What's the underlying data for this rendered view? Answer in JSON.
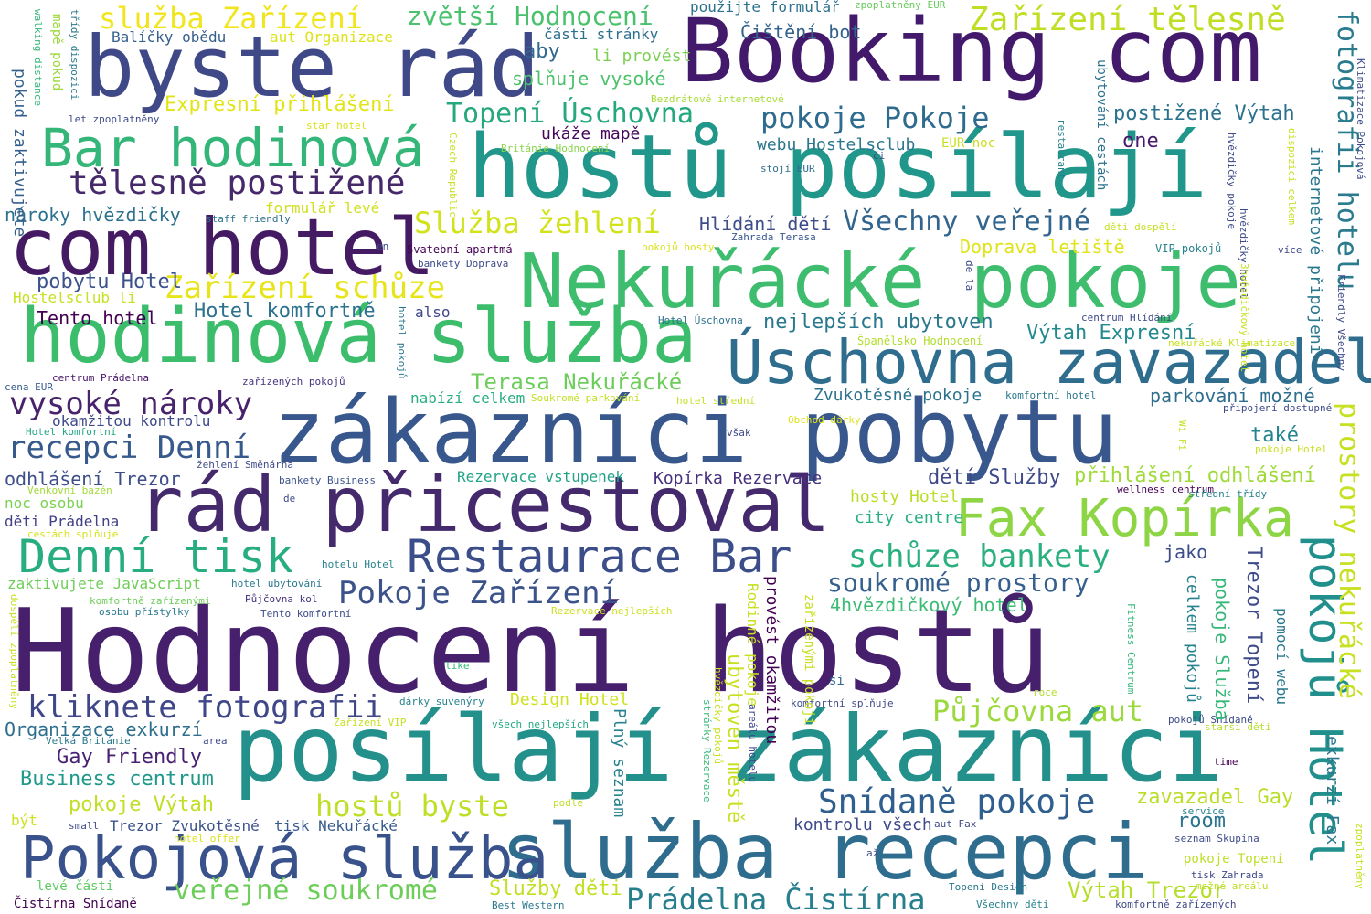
{
  "words": [
    {
      "text": "Hodnocení hostů",
      "color": "#46206c"
    },
    {
      "text": "posílají zákazníci",
      "color": "#23908c"
    },
    {
      "text": "hostů posílají",
      "color": "#21968a"
    },
    {
      "text": "Booking com",
      "color": "#43196b"
    },
    {
      "text": "zákazníci pobytu",
      "color": "#38578c"
    },
    {
      "text": "byste rád",
      "color": "#3f4988"
    },
    {
      "text": "com hotel",
      "color": "#441b63"
    },
    {
      "text": "Nekuřácké pokoje",
      "color": "#3fbd6f"
    },
    {
      "text": "hodinová služba",
      "color": "#3bbd6c"
    },
    {
      "text": "Úschovna zavazadel",
      "color": "#2e6d8e"
    },
    {
      "text": "rád přicestoval",
      "color": "#44296c"
    },
    {
      "text": "služba recepci",
      "color": "#2e6d8e"
    },
    {
      "text": "Pokojová služba",
      "color": "#39528b"
    },
    {
      "text": "Bar hodinová",
      "color": "#34b679"
    },
    {
      "text": "Denní tisk",
      "color": "#27ad7f"
    },
    {
      "text": "Restaurace Bar",
      "color": "#3b4e8a"
    },
    {
      "text": "Fax Kopírka",
      "color": "#8dd544"
    },
    {
      "text": "pokojů Hotel",
      "color": "#218f8c"
    },
    {
      "text": "fotografii hotelu",
      "color": "#2b7b8e"
    },
    {
      "text": "prostory nekuřácké",
      "color": "#c7e022"
    },
    {
      "text": "Snídaně pokoje",
      "color": "#2f5f8e"
    },
    {
      "text": "Prádelna Čistírna",
      "color": "#277f8e"
    },
    {
      "text": "tělesně postižené",
      "color": "#46296b"
    },
    {
      "text": "služba Zařízení",
      "color": "#f1e51d"
    },
    {
      "text": "zvětší Hodnocení",
      "color": "#4ac26d"
    },
    {
      "text": "Zařízení tělesně",
      "color": "#bfdf25"
    },
    {
      "text": "Topení Úschovna",
      "color": "#26a87f"
    },
    {
      "text": "pokoje Pokoje",
      "color": "#2e6b8e"
    },
    {
      "text": "Služba žehlení",
      "color": "#d2e21b"
    },
    {
      "text": "Všechny veřejné",
      "color": "#32658e"
    },
    {
      "text": "Zařízení schůze",
      "color": "#e7e419"
    },
    {
      "text": "vysoké nároky",
      "color": "#48226b"
    },
    {
      "text": "recepci Denní",
      "color": "#375a8c"
    },
    {
      "text": "Terasa Nekuřácké",
      "color": "#6ccd5a"
    },
    {
      "text": "schůze bankety",
      "color": "#2ab07f"
    },
    {
      "text": "soukromé prostory",
      "color": "#355f8d"
    },
    {
      "text": "Pokoje Zařízení",
      "color": "#3b528b"
    },
    {
      "text": "kliknete fotografii",
      "color": "#3f4788"
    },
    {
      "text": "Půjčovna aut",
      "color": "#9bd93c"
    },
    {
      "text": "hostů byste",
      "color": "#bddf26"
    },
    {
      "text": "veřejné soukromé",
      "color": "#6cce59"
    },
    {
      "text": "Expresní přihlášení",
      "color": "#e2e418"
    },
    {
      "text": "nároky hvězdičky",
      "color": "#2d718e"
    },
    {
      "text": "pobytu Hotel",
      "color": "#3b528b"
    },
    {
      "text": "Tento hotel",
      "color": "#440154"
    },
    {
      "text": "Hotel komfortně",
      "color": "#2c728e"
    },
    {
      "text": "nejlepších ubytoven",
      "color": "#2a788e"
    },
    {
      "text": "Výtah Expresní",
      "color": "#238a8d"
    },
    {
      "text": "Zvukotěsné pokoje",
      "color": "#2c738e"
    },
    {
      "text": "parkování možné",
      "color": "#2e6e8e"
    },
    {
      "text": "přihlášení odhlášení",
      "color": "#a0da39"
    },
    {
      "text": "dětí Služby",
      "color": "#3e4989"
    },
    {
      "text": "Kopírka Rezervace",
      "color": "#46307e"
    },
    {
      "text": "Rezervace vstupenek",
      "color": "#20a386"
    },
    {
      "text": "odhlášení Trezor",
      "color": "#3d4e8a"
    },
    {
      "text": "Organizace exkurzí",
      "color": "#2e6f8e"
    },
    {
      "text": "Gay Friendly",
      "color": "#482173"
    },
    {
      "text": "Business centrum",
      "color": "#1f998a"
    },
    {
      "text": "pokoje Výtah",
      "color": "#c0df25"
    },
    {
      "text": "Trezor Zvukotěsné",
      "color": "#3b528b"
    },
    {
      "text": "tisk Nekuřácké",
      "color": "#365c8d"
    },
    {
      "text": "kontrolu všech",
      "color": "#3e4a89"
    },
    {
      "text": "Výtah Trezor",
      "color": "#b5de2b"
    },
    {
      "text": "Služby děti",
      "color": "#c2df23"
    },
    {
      "text": "Design Hotel",
      "color": "#cfe11c"
    },
    {
      "text": "zavazadel Gay",
      "color": "#bade28"
    },
    {
      "text": "room",
      "color": "#2b758e"
    },
    {
      "text": "Hlídání dětí",
      "color": "#3e4c8a"
    },
    {
      "text": "postižené Výtah",
      "color": "#2c728e"
    },
    {
      "text": "webu Hostelsclub",
      "color": "#2a778e"
    },
    {
      "text": "one",
      "color": "#481a6c"
    },
    {
      "text": "Doprava letiště",
      "color": "#dfe318"
    },
    {
      "text": "také",
      "color": "#25858e"
    },
    {
      "text": "jako",
      "color": "#3c4f8a"
    },
    {
      "text": "4hvězdičkový hotel",
      "color": "#3bbb75"
    },
    {
      "text": "city centre",
      "color": "#28ae80"
    },
    {
      "text": "hosty Hotel",
      "color": "#bade28"
    },
    {
      "text": "Balíčky obědu",
      "color": "#35608d"
    },
    {
      "text": "aut Organizace",
      "color": "#dde318"
    },
    {
      "text": "použijte formulář",
      "color": "#2c718e"
    },
    {
      "text": "Čištění bot",
      "color": "#33638d"
    },
    {
      "text": "části stránky",
      "color": "#2d708e"
    },
    {
      "text": "aby",
      "color": "#31688e"
    },
    {
      "text": "li provést",
      "color": "#7ad151"
    },
    {
      "text": "splňuje vysoké",
      "color": "#4cc26c"
    },
    {
      "text": "ukáže mapě",
      "color": "#46085c"
    },
    {
      "text": "formulář levé",
      "color": "#d0e11c"
    },
    {
      "text": "naroky hvězdičky",
      "color": "#2d718e"
    },
    {
      "text": "Hostelsclub li",
      "color": "#c8e020"
    },
    {
      "text": "also",
      "color": "#3f4788"
    },
    {
      "text": "okamžitou kontrolu",
      "color": "#3e4a89"
    },
    {
      "text": "nabízí celkem",
      "color": "#26ad81"
    },
    {
      "text": "noc osobu",
      "color": "#7ad151"
    },
    {
      "text": "děti Prádelna",
      "color": "#424086"
    },
    {
      "text": "zaktivujete JavaScript",
      "color": "#6ece58"
    },
    {
      "text": "Svatební apartmá",
      "color": "#440154"
    },
    {
      "text": "bankety Doprava",
      "color": "#3e4c8a"
    },
    {
      "text": "staff friendly",
      "color": "#2d718e"
    },
    {
      "text": "en",
      "color": "#3e4c8a"
    },
    {
      "text": "Zahrada Terasa",
      "color": "#39568c"
    },
    {
      "text": "VIP pokojů",
      "color": "#26828e"
    },
    {
      "text": "Španělsko Hodnocení",
      "color": "#b2dd2d"
    },
    {
      "text": "EUR noc",
      "color": "#c8e020"
    },
    {
      "text": "Zvukotěsné",
      "color": "#35b779"
    },
    {
      "text": "Obchod dárky",
      "color": "#dde318"
    },
    {
      "text": "komfortní hotel",
      "color": "#2a768e"
    },
    {
      "text": "Bezdrátové internetové",
      "color": "#a8db34"
    },
    {
      "text": "Británie Hodnocení",
      "color": "#86d549"
    },
    {
      "text": "stojí EUR",
      "color": "#2e6e8e"
    },
    {
      "text": "zpoplatněny EUR",
      "color": "#67cc5c"
    },
    {
      "text": "Hotel Úschovna",
      "color": "#2c728e"
    },
    {
      "text": "hotel střední",
      "color": "#c5e021"
    },
    {
      "text": "Soukromé parkování",
      "color": "#c2df23"
    },
    {
      "text": "cena EUR",
      "color": "#365d8d"
    },
    {
      "text": "centrum Prádelna",
      "color": "#481668"
    },
    {
      "text": "zařízených pokojů",
      "color": "#46337f"
    },
    {
      "text": "Hotel komfortní",
      "color": "#21a685"
    },
    {
      "text": "žehlení Směnárna",
      "color": "#3e4a89"
    },
    {
      "text": "Venkovní bazén",
      "color": "#a2da37"
    },
    {
      "text": "bankety Business",
      "color": "#3b528b"
    },
    {
      "text": "cestách splňuje",
      "color": "#d8e219"
    },
    {
      "text": "hotelu Hotel",
      "color": "#26828e"
    },
    {
      "text": "hotel ubytování",
      "color": "#2a788e"
    },
    {
      "text": "Půjčovna kol",
      "color": "#46307e"
    },
    {
      "text": "Tento komfortní",
      "color": "#3e4c8a"
    },
    {
      "text": "komfortně zařízenými",
      "color": "#6ece58"
    },
    {
      "text": "osobu přístylky",
      "color": "#2a788e"
    },
    {
      "text": "Rezervace nejlepších",
      "color": "#cde11d"
    },
    {
      "text": "like",
      "color": "#35b779"
    },
    {
      "text": "dárky suvenýry",
      "color": "#26828e"
    },
    {
      "text": "Zařízení VIP",
      "color": "#c8e020"
    },
    {
      "text": "všech nejlepších",
      "color": "#22a884"
    },
    {
      "text": "Velká Británie",
      "color": "#2a788e"
    },
    {
      "text": "area",
      "color": "#3e4a89"
    },
    {
      "text": "levé části",
      "color": "#5ec962"
    },
    {
      "text": "Čistírna Snídaně",
      "color": "#440154"
    },
    {
      "text": "Best Western",
      "color": "#2a788e"
    },
    {
      "text": "být",
      "color": "#cde11d"
    },
    {
      "text": "small",
      "color": "#3e4a89"
    },
    {
      "text": "hotel offer",
      "color": "#d8e219"
    },
    {
      "text": "podle",
      "color": "#bddf26"
    },
    {
      "text": "aut Fax",
      "color": "#3e4a89"
    },
    {
      "text": "až",
      "color": "#3e4a89"
    },
    {
      "text": "Topení Design",
      "color": "#2a788e"
    },
    {
      "text": "Všechny děti",
      "color": "#26828e"
    },
    {
      "text": "komfortně zařízených",
      "color": "#3e4a89"
    },
    {
      "text": "si",
      "color": "#31688e"
    },
    {
      "text": "roce",
      "color": "#b5de2b"
    },
    {
      "text": "komfortní splňuje",
      "color": "#3e4a89"
    },
    {
      "text": "starší děti",
      "color": "#b5de2b"
    },
    {
      "text": "pokojů Snídaně",
      "color": "#3e4a89"
    },
    {
      "text": "time",
      "color": "#440154"
    },
    {
      "text": "service",
      "color": "#26828e"
    },
    {
      "text": "seznam Skupina",
      "color": "#3e4c8a"
    },
    {
      "text": "pokoje Topení",
      "color": "#bddf26"
    },
    {
      "text": "tisk Zahrada",
      "color": "#3e4a89"
    },
    {
      "text": "možné areálu",
      "color": "#bddf26"
    },
    {
      "text": "wellness centrum",
      "color": "#440154"
    },
    {
      "text": "střední třídy",
      "color": "#26828e"
    },
    {
      "text": "de",
      "color": "#3e4a89"
    },
    {
      "text": "však",
      "color": "#3e4a89"
    },
    {
      "text": "Wi Fi",
      "color": "#c8e020"
    },
    {
      "text": "pokoje Hotel",
      "color": "#c8e020"
    },
    {
      "text": "připojení dostupné",
      "color": "#3e4a89"
    },
    {
      "text": "centrum Hlídání",
      "color": "#3e4a89"
    },
    {
      "text": "nekuřácké Klimatizace",
      "color": "#c8e020"
    },
    {
      "text": "více",
      "color": "#3e4a89"
    },
    {
      "text": "děti dospělí",
      "color": "#c8e020"
    },
    {
      "text": "pokojů hosty",
      "color": "#d8e219"
    },
    {
      "text": "za",
      "color": "#3e4a89"
    },
    {
      "text": "či",
      "color": "#3e4a89"
    },
    {
      "text": "walking distance",
      "color": "#35b779"
    },
    {
      "text": "mapě pokud",
      "color": "#9bd93c"
    },
    {
      "text": "třídy dispozici",
      "color": "#2a788e"
    },
    {
      "text": "let zpoplatněny",
      "color": "#3e4a89"
    },
    {
      "text": "star hotel",
      "color": "#d8e219"
    },
    {
      "text": "pokud zaktivujete",
      "color": "#35608d"
    },
    {
      "text": "Czech Republic",
      "color": "#c8e020"
    },
    {
      "text": "de la",
      "color": "#3e4a89"
    },
    {
      "text": "hotel pokojů",
      "color": "#2a788e"
    },
    {
      "text": "dospělí zpoplatněny",
      "color": "#c8e020"
    },
    {
      "text": "ubytování cestách",
      "color": "#2c728e"
    },
    {
      "text": "internetové připojení",
      "color": "#2a788e"
    },
    {
      "text": "dispozici celkem",
      "color": "#c8e020"
    },
    {
      "text": "Klimatizace Pokojová",
      "color": "#3e4a89"
    },
    {
      "text": "Friendly Všechny",
      "color": "#3e4a89"
    },
    {
      "text": "hvězdičky hotel",
      "color": "#3e4a89"
    },
    {
      "text": "hvězdičky pokoje",
      "color": "#3e4a89"
    },
    {
      "text": "3hvězdičkový hotel",
      "color": "#c8e020"
    },
    {
      "text": "restaurant",
      "color": "#26828e"
    },
    {
      "text": "exkurzí Fax",
      "color": "#2a788e"
    },
    {
      "text": "Plný seznam",
      "color": "#26828e"
    },
    {
      "text": "ubytoven městě",
      "color": "#c8e020"
    },
    {
      "text": "Rodinné pokoje",
      "color": "#c8e020"
    },
    {
      "text": "provést okamžitou",
      "color": "#440154"
    },
    {
      "text": "zařízenými pokoji",
      "color": "#c8e020"
    },
    {
      "text": "stránky Rezervace",
      "color": "#35b779"
    },
    {
      "text": "hvězdičky pokojů",
      "color": "#c8e020"
    },
    {
      "text": "areálu hotelu",
      "color": "#3e4a89"
    },
    {
      "text": "celkem pokojů",
      "color": "#26828e"
    },
    {
      "text": "pokoje Služba",
      "color": "#35b779"
    },
    {
      "text": "Trezor Topení",
      "color": "#3e4a89"
    },
    {
      "text": "pomocí webu",
      "color": "#2a788e"
    },
    {
      "text": "Fitness Centrum",
      "color": "#35b779"
    },
    {
      "text": "zpoplatněny",
      "color": "#c8e020"
    }
  ]
}
